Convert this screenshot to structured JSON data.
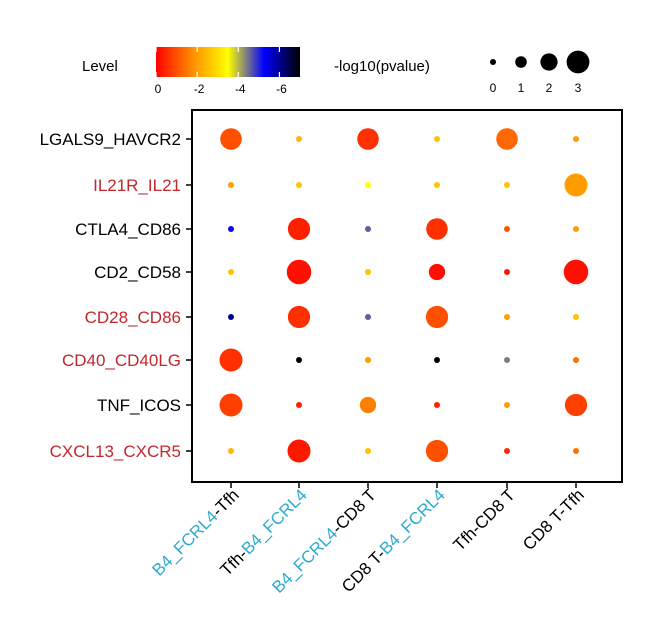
{
  "chart_data": {
    "type": "dotplot",
    "legend_color": {
      "title": "Level",
      "ticks": [
        "0",
        "-2",
        "-4",
        "-6"
      ],
      "tick_values": [
        0,
        -2,
        -4,
        -6
      ],
      "range": [
        0,
        -7
      ],
      "gradient": [
        "#ff0000",
        "#ff8c00",
        "#ffff00",
        "#0000ff",
        "#000000"
      ]
    },
    "legend_size": {
      "title": "-log10(pvalue)",
      "ticks": [
        "0",
        "1",
        "2",
        "3"
      ],
      "tick_values": [
        0,
        1,
        2,
        3
      ]
    },
    "rows": [
      {
        "label": "LGALS9_HAVCR2",
        "color": "#000000"
      },
      {
        "label": "IL21R_IL21",
        "color": "#c0282c"
      },
      {
        "label": "CTLA4_CD86",
        "color": "#000000"
      },
      {
        "label": "CD2_CD58",
        "color": "#000000"
      },
      {
        "label": "CD28_CD86",
        "color": "#c0282c"
      },
      {
        "label": "CD40_CD40LG",
        "color": "#c0282c"
      },
      {
        "label": "TNF_ICOS",
        "color": "#000000"
      },
      {
        "label": "CXCL13_CXCR5",
        "color": "#c0282c"
      }
    ],
    "columns": [
      {
        "parts": [
          {
            "text": "B4_FCRL4",
            "color": "#2eaad1"
          },
          {
            "text": "-Tfh",
            "color": "#000000"
          }
        ]
      },
      {
        "parts": [
          {
            "text": "Tfh-",
            "color": "#000000"
          },
          {
            "text": "B4_FCRL4",
            "color": "#2eaad1"
          }
        ]
      },
      {
        "parts": [
          {
            "text": "B4_FCRL4",
            "color": "#2eaad1"
          },
          {
            "text": "-CD8 T",
            "color": "#000000"
          }
        ]
      },
      {
        "parts": [
          {
            "text": "CD8 T-",
            "color": "#000000"
          },
          {
            "text": "B4_FCRL4",
            "color": "#2eaad1"
          }
        ]
      },
      {
        "parts": [
          {
            "text": "Tfh-CD8 T",
            "color": "#000000"
          }
        ]
      },
      {
        "parts": [
          {
            "text": "CD8 T-Tfh",
            "color": "#000000"
          }
        ]
      }
    ],
    "points": [
      [
        {
          "size": 2.1,
          "level": -1.0
        },
        {
          "size": 0.1,
          "level": -2.4
        },
        {
          "size": 2.1,
          "level": -0.6
        },
        {
          "size": 0.1,
          "level": -2.6
        },
        {
          "size": 2.1,
          "level": -1.3
        },
        {
          "size": 0.1,
          "level": -2.0
        }
      ],
      [
        {
          "size": 0.1,
          "level": -2.0
        },
        {
          "size": 0.1,
          "level": -2.6
        },
        {
          "size": 0.1,
          "level": -3.5
        },
        {
          "size": 0.1,
          "level": -2.6
        },
        {
          "size": 0.1,
          "level": -2.6
        },
        {
          "size": 2.3,
          "level": -2.0
        }
      ],
      [
        {
          "size": 0.1,
          "level": -5.2
        },
        {
          "size": 2.2,
          "level": -0.4
        },
        {
          "size": 0.1,
          "level": -4.6
        },
        {
          "size": 2.1,
          "level": -0.6
        },
        {
          "size": 0.1,
          "level": -1.1
        },
        {
          "size": 0.1,
          "level": -2.0
        }
      ],
      [
        {
          "size": 0.1,
          "level": -2.6
        },
        {
          "size": 2.5,
          "level": -0.2
        },
        {
          "size": 0.1,
          "level": -2.6
        },
        {
          "size": 1.4,
          "level": -0.2
        },
        {
          "size": 0.1,
          "level": -0.3
        },
        {
          "size": 2.5,
          "level": -0.2
        }
      ],
      [
        {
          "size": 0.1,
          "level": -6.0
        },
        {
          "size": 2.2,
          "level": -0.6
        },
        {
          "size": 0.1,
          "level": -4.6
        },
        {
          "size": 2.2,
          "level": -1.0
        },
        {
          "size": 0.1,
          "level": -2.0
        },
        {
          "size": 0.1,
          "level": -2.6
        }
      ],
      [
        {
          "size": 2.3,
          "level": -0.6
        },
        {
          "size": 0.1,
          "level": -7.0
        },
        {
          "size": 0.1,
          "level": -2.0
        },
        {
          "size": 0.1,
          "level": -7.0
        },
        {
          "size": 0.1,
          "level": -4.4
        },
        {
          "size": 0.1,
          "level": -1.4
        }
      ],
      [
        {
          "size": 2.3,
          "level": -0.8
        },
        {
          "size": 0.1,
          "level": -0.4
        },
        {
          "size": 1.4,
          "level": -1.6
        },
        {
          "size": 0.1,
          "level": -0.4
        },
        {
          "size": 0.1,
          "level": -2.0
        },
        {
          "size": 2.2,
          "level": -0.8
        }
      ],
      [
        {
          "size": 0.1,
          "level": -2.4
        },
        {
          "size": 2.3,
          "level": -0.3
        },
        {
          "size": 0.1,
          "level": -2.6
        },
        {
          "size": 2.2,
          "level": -1.0
        },
        {
          "size": 0.1,
          "level": -0.5
        },
        {
          "size": 0.1,
          "level": -1.4
        }
      ]
    ]
  }
}
